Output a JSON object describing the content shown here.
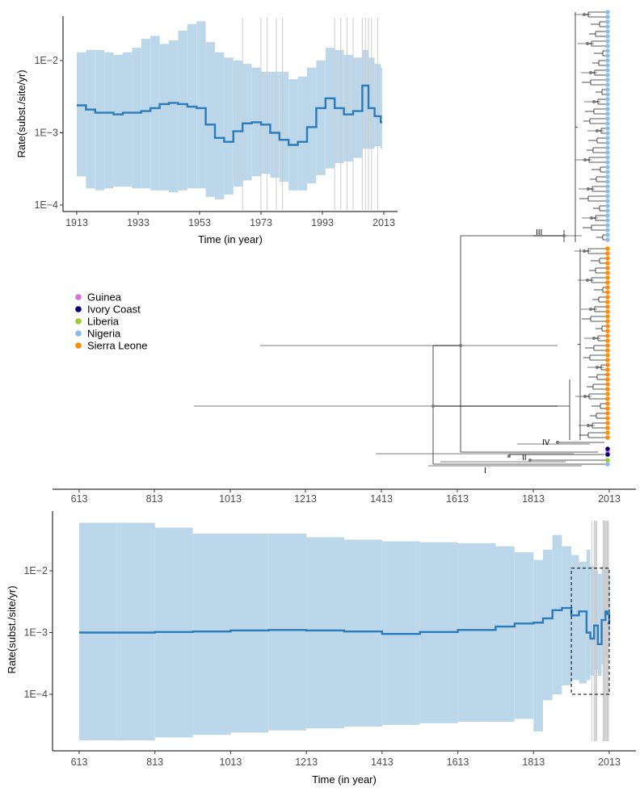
{
  "figure": {
    "legend": {
      "entries": [
        {
          "label": "Guinea",
          "color": "#DA70D6"
        },
        {
          "label": "Ivory Coast",
          "color": "#000080"
        },
        {
          "label": "Liberia",
          "color": "#9ACD32"
        },
        {
          "label": "Nigeria",
          "color": "#87BEEB"
        },
        {
          "label": "Sierra Leone",
          "color": "#FF8C00"
        }
      ],
      "placement": "left-middle"
    },
    "clade_labels": [
      "III",
      "IV",
      "II",
      "I"
    ],
    "tree_axis": {
      "ticks": [
        "613",
        "813",
        "1013",
        "1213",
        "1413",
        "1613",
        "1813",
        "2013"
      ]
    }
  },
  "chart_data": [
    {
      "type": "line",
      "title": "",
      "xlabel": "Time (in year)",
      "ylabel": "Rate(subst./site/yr)",
      "xlim": [
        1913,
        2013
      ],
      "ylim": [
        0.0001,
        0.01
      ],
      "y_scale": "log",
      "x_ticks": [
        1913,
        1933,
        1953,
        1973,
        1993,
        2013
      ],
      "x_tick_labels": [
        "1913",
        "1933",
        "1953",
        "1973",
        "1993",
        "2013"
      ],
      "y_ticks": [
        0.0001,
        0.001,
        0.01
      ],
      "y_tick_labels": [
        "1E−4",
        "1E−3",
        "1E−2"
      ],
      "series": [
        {
          "band_color": "#BDD7EA",
          "line_color": "#2B7BBA",
          "x": [
            1913,
            1916,
            1919,
            1922,
            1925,
            1928,
            1931,
            1934,
            1937,
            1940,
            1943,
            1946,
            1949,
            1952,
            1955,
            1958,
            1961,
            1964,
            1967,
            1970,
            1973,
            1976,
            1979,
            1982,
            1985,
            1988,
            1991,
            1994,
            1997,
            2000,
            2003,
            2006,
            2008,
            2010,
            2012
          ],
          "y": [
            0.0024,
            0.0021,
            0.0019,
            0.0019,
            0.0018,
            0.0019,
            0.0019,
            0.002,
            0.0022,
            0.0025,
            0.0026,
            0.0025,
            0.0023,
            0.0022,
            0.0013,
            0.00085,
            0.00075,
            0.00105,
            0.00135,
            0.0014,
            0.0013,
            0.001,
            0.0008,
            0.00068,
            0.00075,
            0.0012,
            0.0022,
            0.003,
            0.0022,
            0.0018,
            0.002,
            0.0045,
            0.0022,
            0.0017,
            0.0014
          ],
          "upper": [
            0.013,
            0.014,
            0.014,
            0.013,
            0.012,
            0.013,
            0.015,
            0.02,
            0.022,
            0.017,
            0.019,
            0.026,
            0.032,
            0.035,
            0.018,
            0.013,
            0.011,
            0.01,
            0.009,
            0.008,
            0.007,
            0.007,
            0.007,
            0.0055,
            0.006,
            0.008,
            0.01,
            0.015,
            0.014,
            0.012,
            0.011,
            0.014,
            0.011,
            0.009,
            0.008
          ],
          "lower": [
            0.00025,
            0.00017,
            0.00016,
            0.00017,
            0.00018,
            0.00018,
            0.00017,
            0.00017,
            0.00016,
            0.00016,
            0.00015,
            0.00016,
            0.00017,
            0.00017,
            0.00013,
            0.00012,
            0.00014,
            0.00018,
            0.00022,
            0.00025,
            0.00027,
            0.00024,
            0.00021,
            0.00016,
            0.00016,
            0.0002,
            0.00026,
            0.00032,
            0.00038,
            0.0004,
            0.00045,
            0.0006,
            0.0006,
            0.00065,
            0.0006
          ]
        }
      ],
      "vlines": [
        1967,
        1973,
        1975,
        1978,
        1980,
        1997,
        1999,
        2001,
        2003,
        2006,
        2007,
        2008,
        2009,
        2011
      ],
      "grid": false
    },
    {
      "type": "line",
      "title": "",
      "xlabel": "Time (in year)",
      "ylabel": "Rate(subst./site/yr)",
      "xlim": [
        613,
        2013
      ],
      "ylim": [
        0.0001,
        0.01
      ],
      "y_scale": "log",
      "x_ticks": [
        613,
        813,
        1013,
        1213,
        1413,
        1613,
        1813,
        2013
      ],
      "x_tick_labels": [
        "613",
        "813",
        "1013",
        "1213",
        "1413",
        "1613",
        "1813",
        "2013"
      ],
      "y_ticks": [
        0.0001,
        0.001,
        0.01
      ],
      "y_tick_labels": [
        "1E−4",
        "1E−3",
        "1E−2"
      ],
      "series": [
        {
          "band_color": "#BDD7EA",
          "line_color": "#2B7BBA",
          "x": [
            613,
            713,
            813,
            913,
            1013,
            1113,
            1213,
            1313,
            1413,
            1513,
            1613,
            1713,
            1763,
            1813,
            1838,
            1863,
            1888,
            1913,
            1933,
            1953,
            1963,
            1973,
            1983,
            1993,
            2003,
            2008,
            2013
          ],
          "y": [
            0.001,
            0.001,
            0.00102,
            0.00104,
            0.00108,
            0.0011,
            0.00108,
            0.00104,
            0.00095,
            0.00102,
            0.0011,
            0.00125,
            0.0014,
            0.00145,
            0.0017,
            0.0023,
            0.0025,
            0.0019,
            0.0022,
            0.001,
            0.0008,
            0.0013,
            0.00065,
            0.0016,
            0.0022,
            0.002,
            0.0014
          ],
          "upper": [
            0.06,
            0.06,
            0.05,
            0.04,
            0.04,
            0.04,
            0.035,
            0.032,
            0.03,
            0.029,
            0.028,
            0.025,
            0.02,
            0.015,
            0.022,
            0.038,
            0.025,
            0.018,
            0.014,
            0.022,
            0.012,
            0.01,
            0.009,
            0.012,
            0.011,
            0.011,
            0.008
          ],
          "lower": [
            1.8e-05,
            1.8e-05,
            2e-05,
            2.2e-05,
            2.4e-05,
            2.6e-05,
            2.8e-05,
            3e-05,
            3.2e-05,
            3.4e-05,
            3.6e-05,
            3.6e-05,
            4e-05,
            2.5e-05,
            8e-05,
            0.0001,
            0.00014,
            0.00017,
            0.00015,
            0.00017,
            0.0002,
            0.00025,
            0.0002,
            0.0003,
            0.0004,
            0.0006,
            0.0006
          ]
        }
      ],
      "highlight_box": {
        "x": [
          1913,
          2013
        ],
        "y": [
          0.0001,
          0.011
        ]
      },
      "vlines": [
        1967,
        1973,
        1975,
        1978,
        1980,
        1997,
        1999,
        2001,
        2003,
        2006,
        2007,
        2008,
        2009,
        2011
      ],
      "grid": false
    }
  ]
}
